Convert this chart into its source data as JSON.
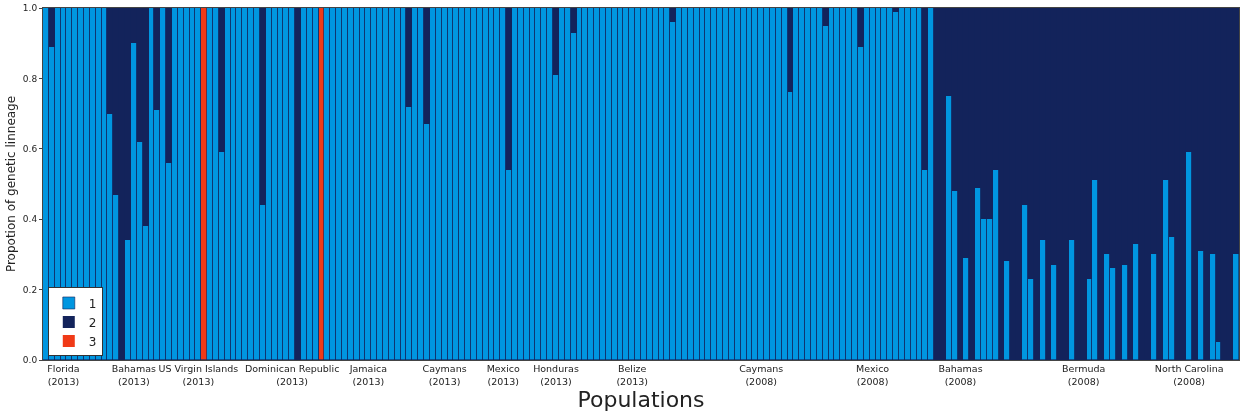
{
  "chart_data": {
    "type": "bar",
    "stacked": true,
    "xlabel": "Populations",
    "ylabel": "Propotion of genetic linneage",
    "categories": [
      null,
      null,
      null,
      "Florida\n(2013)",
      null,
      null,
      null,
      null,
      null,
      null,
      null,
      null,
      null,
      null,
      null,
      "Bahamas\n(2013)",
      null,
      null,
      null,
      null,
      null,
      null,
      null,
      null,
      null,
      null,
      "US Virgin Islands\n(2013)",
      null,
      null,
      null,
      null,
      null,
      null,
      null,
      null,
      null,
      null,
      null,
      null,
      null,
      null,
      null,
      "Dominican Republic\n(2013)",
      null,
      null,
      null,
      null,
      null,
      null,
      null,
      null,
      null,
      null,
      null,
      null,
      "Jamaica\n(2013)",
      null,
      null,
      null,
      null,
      null,
      null,
      null,
      null,
      null,
      null,
      null,
      null,
      "Caymans\n(2013)",
      null,
      null,
      null,
      null,
      null,
      null,
      null,
      null,
      null,
      "Mexico\n(2013)",
      null,
      null,
      null,
      null,
      null,
      null,
      null,
      null,
      "Honduras\n(2013)",
      null,
      null,
      null,
      null,
      null,
      null,
      null,
      null,
      null,
      null,
      null,
      null,
      "Belize\n(2013)",
      null,
      null,
      null,
      null,
      null,
      null,
      null,
      null,
      null,
      null,
      null,
      null,
      null,
      null,
      null,
      null,
      null,
      null,
      null,
      null,
      null,
      "Caymans\n(2008)",
      null,
      null,
      null,
      null,
      null,
      null,
      null,
      null,
      null,
      null,
      null,
      null,
      null,
      null,
      null,
      null,
      null,
      null,
      "Mexico\n(2008)",
      null,
      null,
      null,
      null,
      null,
      null,
      null,
      null,
      null,
      null,
      null,
      null,
      null,
      null,
      "Bahamas\n(2008)",
      null,
      null,
      null,
      null,
      null,
      null,
      null,
      null,
      null,
      null,
      null,
      null,
      null,
      null,
      null,
      null,
      null,
      null,
      null,
      null,
      "Bermuda\n(2008)",
      null,
      null,
      null,
      null,
      null,
      null,
      null,
      null,
      null,
      null,
      null,
      null,
      null,
      null,
      null,
      null,
      null,
      "North Carolina\n(2008)",
      null,
      null,
      null,
      null,
      null,
      null,
      null,
      null
    ],
    "series": [
      {
        "name": "1",
        "color": "#0096e0",
        "values": [
          1,
          0.89,
          1,
          1,
          1,
          1,
          1,
          1,
          1,
          1,
          1,
          0.7,
          0.47,
          0,
          0.34,
          0.9,
          0.62,
          0.38,
          1,
          0.71,
          1,
          0.56,
          1,
          1,
          1,
          1,
          1,
          0,
          1,
          1,
          0.59,
          1,
          1,
          1,
          1,
          1,
          1,
          0.44,
          1,
          1,
          1,
          1,
          1,
          0,
          1,
          1,
          1,
          0,
          1,
          1,
          1,
          1,
          1,
          1,
          1,
          1,
          1,
          1,
          1,
          1,
          1,
          1,
          0.72,
          1,
          1,
          0.67,
          1,
          1,
          1,
          1,
          1,
          1,
          1,
          1,
          1,
          1,
          1,
          1,
          1,
          0.54,
          1,
          1,
          1,
          1,
          1,
          1,
          1,
          0.81,
          1,
          1,
          0.93,
          1,
          1,
          1,
          1,
          1,
          1,
          1,
          1,
          1,
          1,
          1,
          1,
          1,
          1,
          1,
          1,
          0.96,
          1,
          1,
          1,
          1,
          1,
          1,
          1,
          1,
          1,
          1,
          1,
          1,
          1,
          1,
          1,
          1,
          1,
          1,
          1,
          0.76,
          1,
          1,
          1,
          1,
          1,
          0.95,
          1,
          1,
          1,
          1,
          1,
          0.89,
          1,
          1,
          1,
          1,
          1,
          0.99,
          1,
          1,
          1,
          1,
          0.54,
          1,
          0,
          0,
          0.75,
          0.48,
          0,
          0.29,
          0,
          0.49,
          0.4,
          0.4,
          0.54,
          0,
          0.28,
          0,
          0,
          0.44,
          0.23,
          0,
          0.34,
          0,
          0.27,
          0,
          0,
          0.34,
          0,
          0,
          0.23,
          0.51,
          0,
          0.3,
          0.26,
          0,
          0.27,
          0,
          0.33,
          0,
          0,
          0.3,
          0,
          0.51,
          0.35,
          0,
          0,
          0.59,
          0,
          0.31,
          0,
          0.3,
          0.05,
          0,
          0,
          0.3
        ]
      },
      {
        "name": "2",
        "color": "#13235b",
        "values": [
          0,
          0.11,
          0,
          0,
          0,
          0,
          0,
          0,
          0,
          0,
          0,
          0.3,
          0.53,
          1,
          0.66,
          0.1,
          0.38,
          0.62,
          0,
          0.29,
          0,
          0.44,
          0,
          0,
          0,
          0,
          0,
          0,
          0,
          0,
          0.41,
          0,
          0,
          0,
          0,
          0,
          0,
          0.56,
          0,
          0,
          0,
          0,
          0,
          1,
          0,
          0,
          0,
          0,
          0,
          0,
          0,
          0,
          0,
          0,
          0,
          0,
          0,
          0,
          0,
          0,
          0,
          0,
          0.28,
          0,
          0,
          0.33,
          0,
          0,
          0,
          0,
          0,
          0,
          0,
          0,
          0,
          0,
          0,
          0,
          0,
          0.46,
          0,
          0,
          0,
          0,
          0,
          0,
          0,
          0.19,
          0,
          0,
          0.07,
          0,
          0,
          0,
          0,
          0,
          0,
          0,
          0,
          0,
          0,
          0,
          0,
          0,
          0,
          0,
          0,
          0.04,
          0,
          0,
          0,
          0,
          0,
          0,
          0,
          0,
          0,
          0,
          0,
          0,
          0,
          0,
          0,
          0,
          0,
          0,
          0,
          0.24,
          0,
          0,
          0,
          0,
          0,
          0.05,
          0,
          0,
          0,
          0,
          0,
          0.11,
          0,
          0,
          0,
          0,
          0,
          0.01,
          0,
          0,
          0,
          0,
          0.46,
          0,
          1,
          1,
          0.25,
          0.52,
          1,
          0.71,
          1,
          0.51,
          0.6,
          0.6,
          0.46,
          1,
          0.72,
          1,
          1,
          0.56,
          0.77,
          1,
          0.66,
          1,
          0.73,
          1,
          1,
          0.66,
          1,
          1,
          0.77,
          0.49,
          1,
          0.7,
          0.74,
          1,
          0.73,
          1,
          0.67,
          1,
          1,
          0.7,
          1,
          0.49,
          0.65,
          1,
          1,
          0.41,
          1,
          0.69,
          1,
          0.7,
          0.95,
          1,
          1,
          0.7
        ]
      },
      {
        "name": "3",
        "color": "#f03a17",
        "values": [
          0,
          0,
          0,
          0,
          0,
          0,
          0,
          0,
          0,
          0,
          0,
          0,
          0,
          0,
          0,
          0,
          0,
          0,
          0,
          0,
          0,
          0,
          0,
          0,
          0,
          0,
          0,
          1,
          0,
          0,
          0,
          0,
          0,
          0,
          0,
          0,
          0,
          0,
          0,
          0,
          0,
          0,
          0,
          0,
          0,
          0,
          0,
          1,
          0,
          0,
          0,
          0,
          0,
          0,
          0,
          0,
          0,
          0,
          0,
          0,
          0,
          0,
          0,
          0,
          0,
          0,
          0,
          0,
          0,
          0,
          0,
          0,
          0,
          0,
          0,
          0,
          0,
          0,
          0,
          0,
          0,
          0,
          0,
          0,
          0,
          0,
          0,
          0,
          0,
          0,
          0,
          0,
          0,
          0,
          0,
          0,
          0,
          0,
          0,
          0,
          0,
          0,
          0,
          0,
          0,
          0,
          0,
          0,
          0,
          0,
          0,
          0,
          0,
          0,
          0,
          0,
          0,
          0,
          0,
          0,
          0,
          0,
          0,
          0,
          0,
          0,
          0,
          0,
          0,
          0,
          0,
          0,
          0,
          0,
          0,
          0,
          0,
          0,
          0,
          0,
          0,
          0,
          0,
          0,
          0,
          0,
          0,
          0,
          0,
          0,
          0,
          0,
          0,
          0,
          0,
          0,
          0,
          0,
          0,
          0,
          0,
          0,
          0,
          0,
          0,
          0,
          0,
          0,
          0,
          0,
          0,
          0,
          0,
          0,
          0,
          0,
          0,
          0,
          0,
          0,
          0,
          0,
          0,
          0,
          0,
          0,
          0,
          0,
          0,
          0,
          0,
          0,
          0,
          0,
          0,
          0,
          0,
          0,
          0,
          0,
          0,
          0,
          0,
          0
        ]
      }
    ],
    "ylim": [
      0,
      1
    ],
    "yticks": [
      {
        "value": 0,
        "label": "0.0"
      },
      0.2,
      0.4,
      0.6,
      0.8,
      {
        "value": 1,
        "label": "1.0"
      }
    ],
    "legend": "bottom left"
  }
}
